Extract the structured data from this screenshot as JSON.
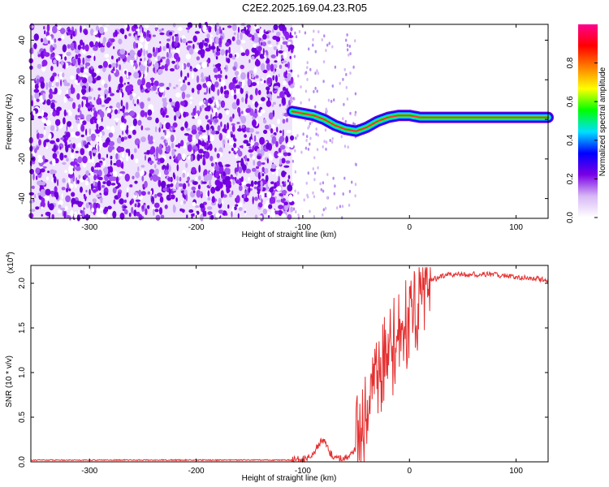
{
  "title": "C2E2.2025.169.04.23.R05",
  "chart_data": [
    {
      "type": "heatmap",
      "name": "spectrogram",
      "xlabel": "Height of straight line (km)",
      "ylabel": "Frequency (Hz)",
      "xlim": [
        -355,
        130
      ],
      "ylim": [
        -50,
        48
      ],
      "x_ticks": [
        -300,
        -200,
        -100,
        0,
        100
      ],
      "y_ticks": [
        -40,
        -20,
        0,
        20,
        40
      ],
      "noise_region_x": [
        -355,
        -110
      ],
      "signal_track": {
        "x": [
          -110,
          -100,
          -90,
          -80,
          -70,
          -60,
          -50,
          -40,
          -30,
          -20,
          -10,
          0,
          10,
          130
        ],
        "y": [
          4,
          3,
          2,
          0,
          -3,
          -5,
          -6,
          -4,
          -1,
          1,
          2,
          2,
          1,
          1
        ]
      },
      "colorbar": {
        "label": "Normalized spectral amplitude",
        "range": [
          0,
          1
        ],
        "ticks": [
          0.0,
          0.2,
          0.4,
          0.6,
          0.8
        ],
        "colormap": [
          "#ffffff",
          "#d7b8f5",
          "#7a00e6",
          "#0000ff",
          "#00e0ff",
          "#00ff00",
          "#ffff00",
          "#ff8000",
          "#ff0000",
          "#ff0090"
        ]
      }
    },
    {
      "type": "line",
      "name": "snr",
      "xlabel": "Height of straight line (km)",
      "ylabel": "SNR (10 * v/v)",
      "scale_label": "(x10",
      "scale_exponent": "4",
      "xlim": [
        -355,
        130
      ],
      "ylim": [
        0,
        2.2
      ],
      "x_ticks": [
        -300,
        -200,
        -100,
        0,
        100
      ],
      "y_ticks": [
        0.0,
        0.5,
        1.0,
        1.5,
        2.0
      ],
      "line_color": "#e53030",
      "series": [
        {
          "x": [
            -355,
            -300,
            -200,
            -110,
            -100,
            -95,
            -90,
            -85,
            -80,
            -75,
            -70,
            -65,
            -60,
            -55,
            -50,
            -45,
            -40,
            -35,
            -30,
            -25,
            -20,
            -15,
            -10,
            -5,
            0,
            5,
            10,
            15,
            20,
            25,
            30,
            40,
            50,
            60,
            70,
            80,
            90,
            100,
            110,
            120,
            130
          ],
          "y": [
            0.02,
            0.02,
            0.02,
            0.02,
            0.03,
            0.05,
            0.1,
            0.2,
            0.25,
            0.1,
            0.05,
            0.04,
            0.05,
            0.08,
            0.15,
            0.4,
            0.6,
            0.8,
            1.0,
            1.05,
            1.15,
            1.3,
            1.4,
            1.5,
            1.6,
            1.7,
            1.85,
            1.95,
            2.05,
            2.05,
            2.08,
            2.1,
            2.1,
            2.1,
            2.1,
            2.1,
            2.08,
            2.07,
            2.06,
            2.05,
            2.04
          ]
        }
      ]
    }
  ]
}
